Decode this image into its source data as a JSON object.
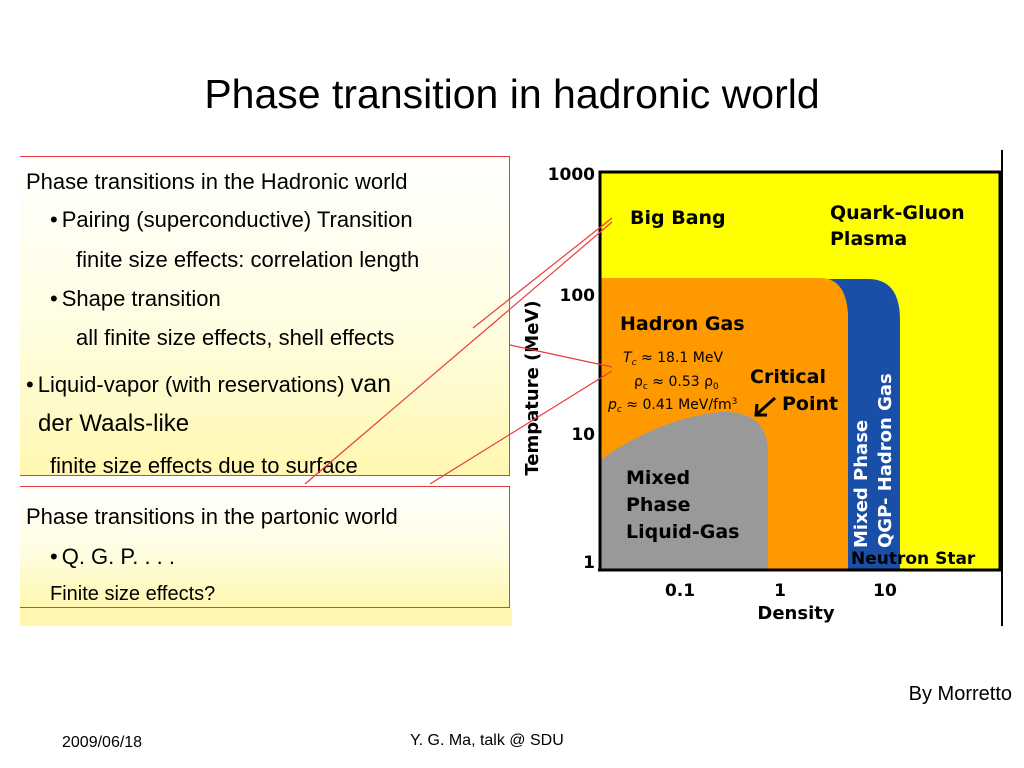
{
  "slide": {
    "title": "Phase transition in hadronic world",
    "credit": "By Morretto",
    "footer_date": "2009/06/18",
    "footer_center": "Y. G. Ma, talk @ SDU"
  },
  "hadronic_panel": {
    "heading": "Phase transitions in the Hadronic world",
    "bullet1": "Pairing (superconductive) Transition",
    "bullet1_detail": "finite size effects: correlation length",
    "bullet2": "Shape transition",
    "bullet2_detail": "all finite size effects, shell effects",
    "bullet3_part1": "Liquid-vapor (with reservations)",
    "bullet3_part2": "van",
    "bullet3_line2": "der Waals-like",
    "bullet3_detail": "finite size effects due to surface"
  },
  "partonic_panel": {
    "heading": "Phase transitions in the partonic world",
    "bullet1": "Q. G. P. . . .",
    "bullet1_detail": "Finite size effects?"
  },
  "bullet_glyph": "•",
  "phase_diagram": {
    "y_axis_label": "Tempature (MeV)",
    "x_axis_label": "Density",
    "y_ticks": [
      "1000",
      "100",
      "10",
      "1"
    ],
    "x_ticks": [
      "0.1",
      "1",
      "10"
    ],
    "regions": {
      "big_bang": "Big Bang",
      "qgp_line1": "Quark-Gluon",
      "qgp_line2": "Plasma",
      "hadron_gas": "Hadron Gas",
      "critical_line1": "Critical",
      "critical_line2": "Point",
      "mixed_lg_line1": "Mixed",
      "mixed_lg_line2": "Phase",
      "mixed_lg_line3": "Liquid-Gas",
      "mixed_qgp_line1": "Mixed Phase",
      "mixed_qgp_line2": "QGP- Hadron Gas",
      "neutron_star": "Neutron Star"
    },
    "critical_values": {
      "tc_symbol": "T",
      "tc_sub": "c",
      "tc_value": " ≈ 18.1 MeV",
      "rho_symbol": "ρ",
      "rho_sub": "c",
      "rho_value": " ≈ 0.53 ρ",
      "rho0_sub": "0",
      "pc_symbol": "p",
      "pc_sub": "c",
      "pc_value": " ≈ 0.41 MeV/fm",
      "pc_sup": "3"
    },
    "colors": {
      "qgp": "#ffff00",
      "hadron_gas": "#ff9900",
      "mixed_lg": "#999999",
      "mixed_qgp": "#1a4fa8",
      "connector": "#e83c3c"
    }
  }
}
